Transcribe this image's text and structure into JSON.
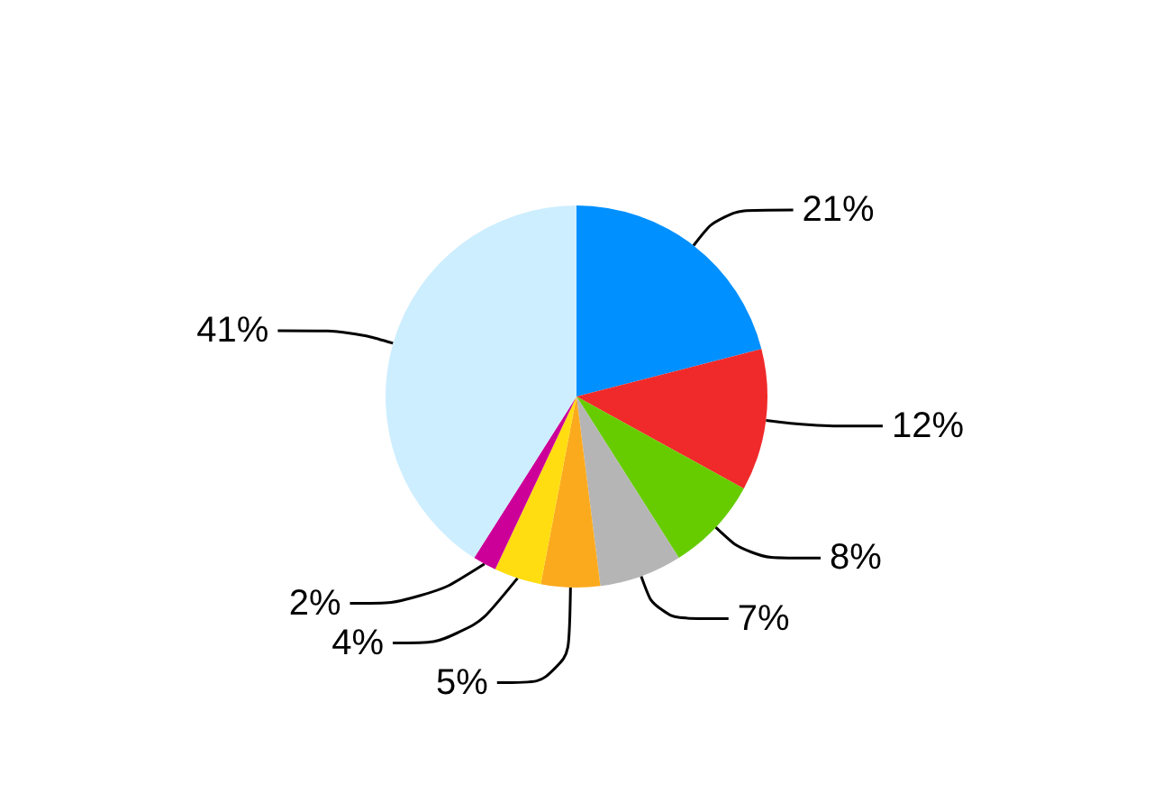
{
  "chart_data": {
    "type": "pie",
    "categories": [
      null,
      null,
      null,
      null,
      null,
      null,
      null,
      null
    ],
    "values": [
      21,
      12,
      8,
      7,
      5,
      4,
      2,
      41
    ],
    "colors": [
      "#0090ff",
      "#f02a2a",
      "#66cc00",
      "#b5b5b5",
      "#fbaa1e",
      "#ffdd11",
      "#cc0099",
      "#cdeeff"
    ],
    "value_labels": [
      "21%",
      "12%",
      "8%",
      "7%",
      "5%",
      "4%",
      "2%",
      "41%"
    ]
  }
}
